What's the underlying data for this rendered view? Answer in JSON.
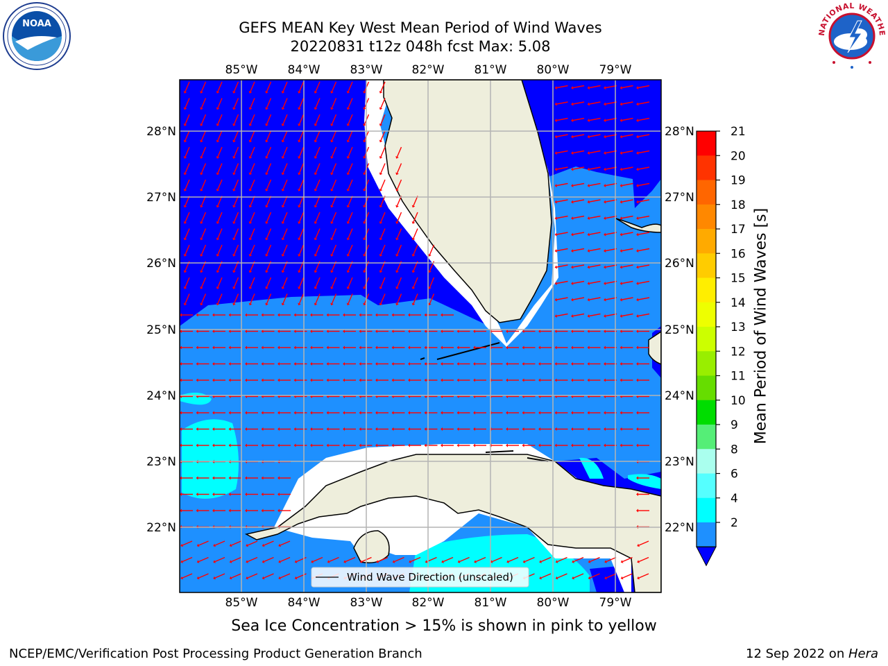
{
  "header": {
    "title_line1": "GEFS MEAN Key West Mean Period of Wind Waves",
    "title_line2": "20220831 t12z 048h fcst   Max: 5.08"
  },
  "logos": {
    "left": {
      "name": "noaa-logo",
      "text": "NOAA"
    },
    "right": {
      "name": "national-weather-service-logo",
      "text": "NATIONAL WEATHER SERVICE"
    }
  },
  "map": {
    "lon_labels": [
      "85°W",
      "84°W",
      "83°W",
      "82°W",
      "81°W",
      "80°W",
      "79°W"
    ],
    "lat_labels": [
      "28°N",
      "27°N",
      "26°N",
      "25°N",
      "24°N",
      "23°N",
      "22°N"
    ],
    "legend_label": "Wind Wave Direction (unscaled)",
    "colors": {
      "band_2_4": "#0000ff",
      "band_4_6": "#1e90ff",
      "band_6_8": "#00ffff",
      "land": "#eeeedc",
      "arrows": "#ff0000",
      "grid": "#b4b4b4"
    }
  },
  "colorbar": {
    "label": "Mean Period of Wind Waves [s]",
    "ticks": [
      "21",
      "20",
      "19",
      "18",
      "17",
      "16",
      "15",
      "14",
      "13",
      "12",
      "11",
      "10",
      "9",
      "8",
      "6",
      "4",
      "2"
    ],
    "colors": [
      "#ff0000",
      "#ff3300",
      "#ff6600",
      "#ff8800",
      "#ffaa00",
      "#ffcc00",
      "#ffee00",
      "#eeff00",
      "#ccff00",
      "#99ee00",
      "#66dd00",
      "#00dd00",
      "#55ee77",
      "#aaffee",
      "#55ffff",
      "#00ffff",
      "#1e90ff"
    ],
    "under_color": "#0000ff"
  },
  "footer": {
    "sea_ice_note": "Sea Ice Concentration > 15% is shown in pink to yellow",
    "left": "NCEP/EMC/Verification Post Processing Product Generation Branch",
    "right_prefix": "12 Sep 2022 on ",
    "right_host": "Hera"
  }
}
